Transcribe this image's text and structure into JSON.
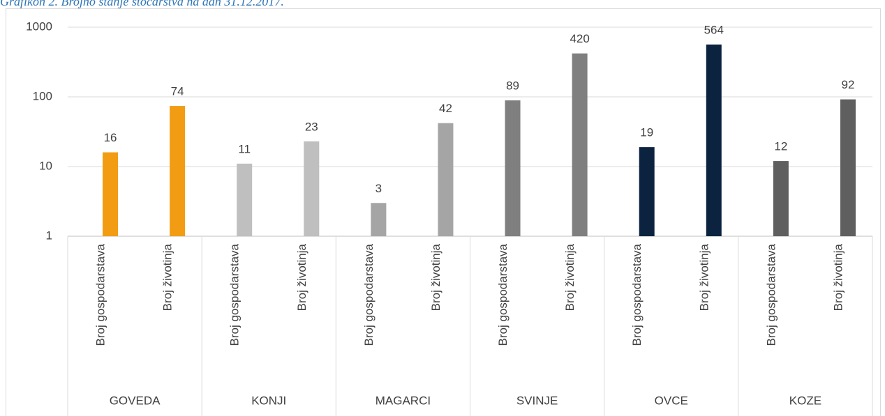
{
  "chart_data": {
    "type": "bar",
    "title": "Grafikon 2. Brojno stanje stočarstva na dan 31.12.2017.",
    "categories": [
      "Broj gospodarstava",
      "Broj životinja",
      "Broj gospodarstava",
      "Broj životinja",
      "Broj gospodarstava",
      "Broj životinja",
      "Broj gospodarstava",
      "Broj životinja",
      "Broj gospodarstava",
      "Broj životinja",
      "Broj gospodarstava",
      "Broj životinja"
    ],
    "groups": [
      "GOVEDA",
      "KONJI",
      "MAGARCI",
      "SVINJE",
      "OVCE",
      "KOZE"
    ],
    "values": [
      16,
      74,
      11,
      23,
      3,
      42,
      89,
      420,
      19,
      564,
      12,
      92
    ],
    "colors": [
      "#f29c13",
      "#f29c13",
      "#bfbfbf",
      "#bfbfbf",
      "#a5a5a5",
      "#a5a5a5",
      "#7f7f7f",
      "#7f7f7f",
      "#0c2340",
      "#0c2340",
      "#5f5f5f",
      "#5f5f5f"
    ],
    "ylim": [
      1,
      1000
    ],
    "yticks": [
      1,
      10,
      100,
      1000
    ],
    "log": true,
    "grid": true
  }
}
